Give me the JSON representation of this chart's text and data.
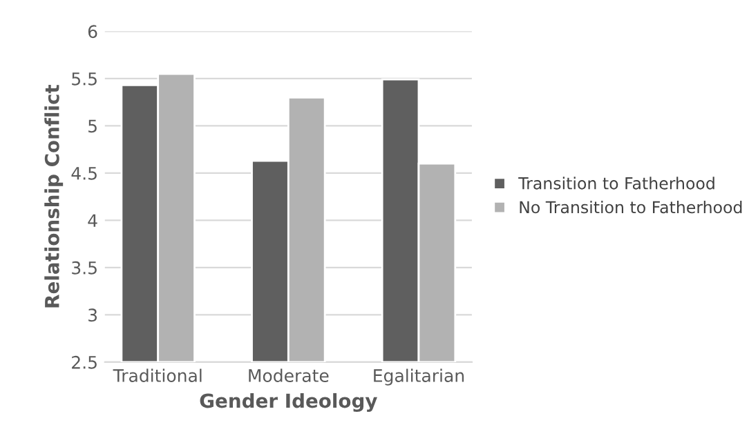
{
  "chart_data": {
    "type": "bar",
    "xlabel": "Gender Ideology",
    "ylabel": "Relationship Conflict",
    "categories": [
      "Traditional",
      "Moderate",
      "Egalitarian"
    ],
    "series": [
      {
        "name": "Transition to Fatherhood",
        "color": "#5f5f5f",
        "values": [
          5.43,
          4.63,
          5.49
        ]
      },
      {
        "name": "No Transition to Fatherhood",
        "color": "#b2b2b2",
        "values": [
          5.55,
          5.3,
          4.6
        ]
      }
    ],
    "ylim": [
      2.5,
      6
    ],
    "yticks": [
      2.5,
      3,
      3.5,
      4,
      4.5,
      5,
      5.5,
      6
    ],
    "grid": "y",
    "legend": "right"
  }
}
